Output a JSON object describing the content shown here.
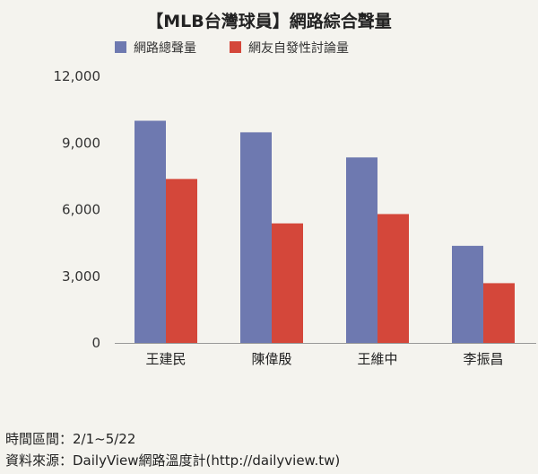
{
  "chart_data": {
    "type": "bar",
    "title": "【MLB台灣球員】網路綜合聲量",
    "categories": [
      "王建民",
      "陳偉殷",
      "王維中",
      "李振昌"
    ],
    "series": [
      {
        "name": "網路總聲量",
        "color": "#6e79b0",
        "values": [
          10000,
          9480,
          8350,
          4370
        ]
      },
      {
        "name": "網友自發性討論量",
        "color": "#d4473a",
        "values": [
          7380,
          5380,
          5800,
          2690
        ]
      }
    ],
    "ylim": [
      0,
      12000
    ],
    "yticks": [
      "0",
      "3,000",
      "6,000",
      "9,000",
      "12,000"
    ],
    "grid": false,
    "legend_position": "top"
  },
  "footer": {
    "period": "時間區間：2/1~5/22",
    "source": "資料來源：DailyView網路溫度計(http://dailyview.tw)"
  }
}
